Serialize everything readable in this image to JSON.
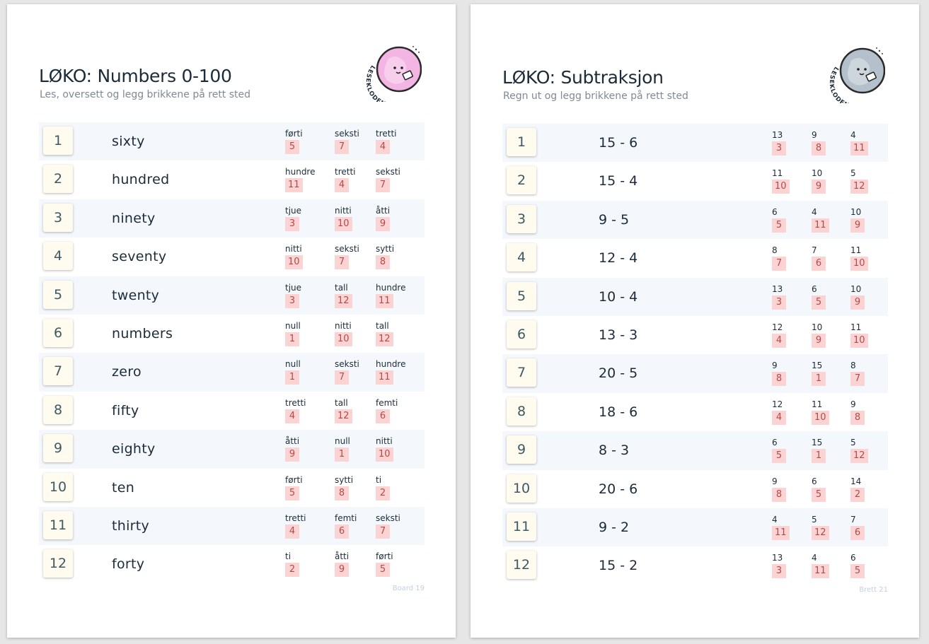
{
  "sheets": [
    {
      "title": "LØKO: Numbers 0-100",
      "subtitle": "Les, oversett og legg brikkene på rett sted",
      "logo_text": "LESEKLODEN",
      "logo_color": "#f3b6e4",
      "board_label": "Board 19",
      "rows": [
        {
          "num": "1",
          "prompt": "sixty",
          "options": [
            {
              "word": "førti",
              "value": "5"
            },
            {
              "word": "seksti",
              "value": "7"
            },
            {
              "word": "tretti",
              "value": "4"
            }
          ]
        },
        {
          "num": "2",
          "prompt": "hundred",
          "options": [
            {
              "word": "hundre",
              "value": "11"
            },
            {
              "word": "tretti",
              "value": "4"
            },
            {
              "word": "seksti",
              "value": "7"
            }
          ]
        },
        {
          "num": "3",
          "prompt": "ninety",
          "options": [
            {
              "word": "tjue",
              "value": "3"
            },
            {
              "word": "nitti",
              "value": "10"
            },
            {
              "word": "åtti",
              "value": "9"
            }
          ]
        },
        {
          "num": "4",
          "prompt": "seventy",
          "options": [
            {
              "word": "nitti",
              "value": "10"
            },
            {
              "word": "seksti",
              "value": "7"
            },
            {
              "word": "sytti",
              "value": "8"
            }
          ]
        },
        {
          "num": "5",
          "prompt": "twenty",
          "options": [
            {
              "word": "tjue",
              "value": "3"
            },
            {
              "word": "tall",
              "value": "12"
            },
            {
              "word": "hundre",
              "value": "11"
            }
          ]
        },
        {
          "num": "6",
          "prompt": "numbers",
          "options": [
            {
              "word": "null",
              "value": "1"
            },
            {
              "word": "nitti",
              "value": "10"
            },
            {
              "word": "tall",
              "value": "12"
            }
          ]
        },
        {
          "num": "7",
          "prompt": "zero",
          "options": [
            {
              "word": "null",
              "value": "1"
            },
            {
              "word": "seksti",
              "value": "7"
            },
            {
              "word": "hundre",
              "value": "11"
            }
          ]
        },
        {
          "num": "8",
          "prompt": "fifty",
          "options": [
            {
              "word": "tretti",
              "value": "4"
            },
            {
              "word": "tall",
              "value": "12"
            },
            {
              "word": "femti",
              "value": "6"
            }
          ]
        },
        {
          "num": "9",
          "prompt": "eighty",
          "options": [
            {
              "word": "åtti",
              "value": "9"
            },
            {
              "word": "null",
              "value": "1"
            },
            {
              "word": "nitti",
              "value": "10"
            }
          ]
        },
        {
          "num": "10",
          "prompt": "ten",
          "options": [
            {
              "word": "førti",
              "value": "5"
            },
            {
              "word": "sytti",
              "value": "8"
            },
            {
              "word": "ti",
              "value": "2"
            }
          ]
        },
        {
          "num": "11",
          "prompt": "thirty",
          "options": [
            {
              "word": "tretti",
              "value": "4"
            },
            {
              "word": "femti",
              "value": "6"
            },
            {
              "word": "seksti",
              "value": "7"
            }
          ]
        },
        {
          "num": "12",
          "prompt": "forty",
          "options": [
            {
              "word": "ti",
              "value": "2"
            },
            {
              "word": "åtti",
              "value": "9"
            },
            {
              "word": "førti",
              "value": "5"
            }
          ]
        }
      ]
    },
    {
      "title": "LØKO: Subtraksjon",
      "subtitle": "Regn ut og legg brikkene på rett sted",
      "logo_text": "LESEKLODEN",
      "logo_color": "#b4c0cb",
      "board_label": "Brett 21",
      "rows": [
        {
          "num": "1",
          "prompt": "15 - 6",
          "options": [
            {
              "word": "13",
              "value": "3"
            },
            {
              "word": "9",
              "value": "8"
            },
            {
              "word": "4",
              "value": "11"
            }
          ]
        },
        {
          "num": "2",
          "prompt": "15 - 4",
          "options": [
            {
              "word": "11",
              "value": "10"
            },
            {
              "word": "10",
              "value": "9"
            },
            {
              "word": "5",
              "value": "12"
            }
          ]
        },
        {
          "num": "3",
          "prompt": "9 - 5",
          "options": [
            {
              "word": "6",
              "value": "5"
            },
            {
              "word": "4",
              "value": "11"
            },
            {
              "word": "10",
              "value": "9"
            }
          ]
        },
        {
          "num": "4",
          "prompt": "12 - 4",
          "options": [
            {
              "word": "8",
              "value": "7"
            },
            {
              "word": "7",
              "value": "6"
            },
            {
              "word": "11",
              "value": "10"
            }
          ]
        },
        {
          "num": "5",
          "prompt": "10 - 4",
          "options": [
            {
              "word": "13",
              "value": "3"
            },
            {
              "word": "6",
              "value": "5"
            },
            {
              "word": "10",
              "value": "9"
            }
          ]
        },
        {
          "num": "6",
          "prompt": "13 - 3",
          "options": [
            {
              "word": "12",
              "value": "4"
            },
            {
              "word": "10",
              "value": "9"
            },
            {
              "word": "11",
              "value": "10"
            }
          ]
        },
        {
          "num": "7",
          "prompt": "20 - 5",
          "options": [
            {
              "word": "9",
              "value": "8"
            },
            {
              "word": "15",
              "value": "1"
            },
            {
              "word": "8",
              "value": "7"
            }
          ]
        },
        {
          "num": "8",
          "prompt": "18 - 6",
          "options": [
            {
              "word": "12",
              "value": "4"
            },
            {
              "word": "11",
              "value": "10"
            },
            {
              "word": "9",
              "value": "8"
            }
          ]
        },
        {
          "num": "9",
          "prompt": "8 - 3",
          "options": [
            {
              "word": "6",
              "value": "5"
            },
            {
              "word": "15",
              "value": "1"
            },
            {
              "word": "5",
              "value": "12"
            }
          ]
        },
        {
          "num": "10",
          "prompt": "20 - 6",
          "options": [
            {
              "word": "9",
              "value": "8"
            },
            {
              "word": "6",
              "value": "5"
            },
            {
              "word": "14",
              "value": "2"
            }
          ]
        },
        {
          "num": "11",
          "prompt": "9 - 2",
          "options": [
            {
              "word": "4",
              "value": "11"
            },
            {
              "word": "5",
              "value": "12"
            },
            {
              "word": "7",
              "value": "6"
            }
          ]
        },
        {
          "num": "12",
          "prompt": "15 - 2",
          "options": [
            {
              "word": "13",
              "value": "3"
            },
            {
              "word": "4",
              "value": "11"
            },
            {
              "word": "6",
              "value": "5"
            }
          ]
        }
      ]
    }
  ]
}
